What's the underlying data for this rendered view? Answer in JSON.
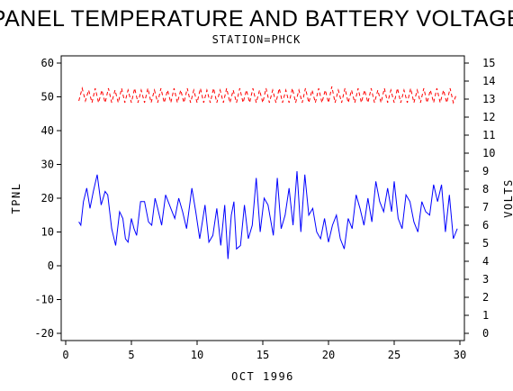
{
  "chart_data": {
    "type": "line",
    "title": "PANEL TEMPERATURE AND BATTERY VOLTAGE",
    "subtitle": "STATION=PHCK",
    "xlabel": "OCT 1996",
    "ylabel_left": "TPNL",
    "ylabel_right": "VOLTS",
    "xlim": [
      0,
      30
    ],
    "ylim_left": [
      -20,
      60
    ],
    "ylim_right": [
      0,
      15
    ],
    "x_ticks": [
      0,
      5,
      10,
      15,
      20,
      25,
      30
    ],
    "y_ticks_left": [
      -20,
      -10,
      0,
      10,
      20,
      30,
      40,
      50,
      60
    ],
    "y_ticks_right": [
      0,
      1,
      2,
      3,
      4,
      5,
      6,
      7,
      8,
      9,
      10,
      11,
      12,
      13,
      14,
      15
    ],
    "grid": false,
    "series": [
      {
        "axis": "left",
        "color": "#0000ff",
        "style": "solid",
        "points": [
          [
            1.0,
            13
          ],
          [
            1.15,
            12
          ],
          [
            1.35,
            19
          ],
          [
            1.6,
            23
          ],
          [
            1.85,
            17
          ],
          [
            2.1,
            22
          ],
          [
            2.4,
            27
          ],
          [
            2.7,
            18
          ],
          [
            3.0,
            22
          ],
          [
            3.2,
            21
          ],
          [
            3.5,
            11
          ],
          [
            3.8,
            6
          ],
          [
            4.1,
            16
          ],
          [
            4.35,
            14
          ],
          [
            4.55,
            8
          ],
          [
            4.75,
            7
          ],
          [
            5.0,
            14
          ],
          [
            5.2,
            11
          ],
          [
            5.4,
            9
          ],
          [
            5.7,
            19
          ],
          [
            6.0,
            19
          ],
          [
            6.3,
            13
          ],
          [
            6.55,
            12
          ],
          [
            6.8,
            20
          ],
          [
            7.0,
            17
          ],
          [
            7.3,
            12
          ],
          [
            7.6,
            21
          ],
          [
            8.0,
            17
          ],
          [
            8.3,
            14
          ],
          [
            8.6,
            20
          ],
          [
            8.9,
            16
          ],
          [
            9.2,
            11
          ],
          [
            9.6,
            23
          ],
          [
            9.9,
            16
          ],
          [
            10.2,
            8
          ],
          [
            10.6,
            18
          ],
          [
            10.9,
            7
          ],
          [
            11.2,
            9
          ],
          [
            11.5,
            17
          ],
          [
            11.8,
            6
          ],
          [
            12.1,
            18
          ],
          [
            12.35,
            2
          ],
          [
            12.6,
            15
          ],
          [
            12.8,
            19
          ],
          [
            13.0,
            5
          ],
          [
            13.3,
            6
          ],
          [
            13.6,
            18
          ],
          [
            13.9,
            8
          ],
          [
            14.2,
            12
          ],
          [
            14.5,
            26
          ],
          [
            14.8,
            10
          ],
          [
            15.1,
            20
          ],
          [
            15.4,
            18
          ],
          [
            15.8,
            9
          ],
          [
            16.1,
            26
          ],
          [
            16.4,
            11
          ],
          [
            16.7,
            15
          ],
          [
            17.0,
            23
          ],
          [
            17.3,
            12
          ],
          [
            17.6,
            28
          ],
          [
            17.9,
            10
          ],
          [
            18.2,
            27
          ],
          [
            18.5,
            15
          ],
          [
            18.8,
            17
          ],
          [
            19.1,
            10
          ],
          [
            19.4,
            8
          ],
          [
            19.7,
            14
          ],
          [
            20.0,
            7
          ],
          [
            20.3,
            12
          ],
          [
            20.6,
            15
          ],
          [
            20.9,
            8
          ],
          [
            21.2,
            5
          ],
          [
            21.5,
            14
          ],
          [
            21.8,
            11
          ],
          [
            22.1,
            21
          ],
          [
            22.4,
            17
          ],
          [
            22.7,
            12
          ],
          [
            23.0,
            20
          ],
          [
            23.3,
            13
          ],
          [
            23.6,
            25
          ],
          [
            23.9,
            19
          ],
          [
            24.2,
            16
          ],
          [
            24.5,
            23
          ],
          [
            24.8,
            16
          ],
          [
            25.0,
            25
          ],
          [
            25.3,
            14
          ],
          [
            25.6,
            11
          ],
          [
            25.9,
            21
          ],
          [
            26.2,
            19
          ],
          [
            26.5,
            13
          ],
          [
            26.8,
            10
          ],
          [
            27.1,
            19
          ],
          [
            27.4,
            16
          ],
          [
            27.7,
            15
          ],
          [
            28.0,
            24
          ],
          [
            28.3,
            19
          ],
          [
            28.6,
            24
          ],
          [
            28.9,
            10
          ],
          [
            29.2,
            21
          ],
          [
            29.5,
            8
          ],
          [
            29.8,
            11
          ]
        ]
      },
      {
        "axis": "right",
        "color": "#ff0000",
        "style": "dashed",
        "points": [
          [
            1.0,
            12.9
          ],
          [
            1.25,
            13.6
          ],
          [
            1.5,
            12.9
          ],
          [
            1.75,
            13.5
          ],
          [
            2.0,
            12.8
          ],
          [
            2.25,
            13.6
          ],
          [
            2.5,
            12.8
          ],
          [
            2.75,
            13.5
          ],
          [
            3.0,
            12.8
          ],
          [
            3.25,
            13.6
          ],
          [
            3.5,
            12.8
          ],
          [
            3.75,
            13.5
          ],
          [
            4.0,
            12.8
          ],
          [
            4.25,
            13.6
          ],
          [
            4.5,
            12.8
          ],
          [
            4.75,
            13.5
          ],
          [
            5.0,
            12.8
          ],
          [
            5.25,
            13.6
          ],
          [
            5.5,
            12.8
          ],
          [
            5.75,
            13.5
          ],
          [
            6.0,
            12.8
          ],
          [
            6.25,
            13.6
          ],
          [
            6.5,
            12.8
          ],
          [
            6.75,
            13.5
          ],
          [
            7.0,
            12.8
          ],
          [
            7.25,
            13.6
          ],
          [
            7.5,
            12.8
          ],
          [
            7.75,
            13.5
          ],
          [
            8.0,
            12.8
          ],
          [
            8.25,
            13.6
          ],
          [
            8.5,
            12.8
          ],
          [
            8.75,
            13.5
          ],
          [
            9.0,
            12.8
          ],
          [
            9.25,
            13.6
          ],
          [
            9.5,
            12.8
          ],
          [
            9.75,
            13.5
          ],
          [
            10.0,
            12.8
          ],
          [
            10.25,
            13.6
          ],
          [
            10.5,
            12.8
          ],
          [
            10.75,
            13.5
          ],
          [
            11.0,
            12.8
          ],
          [
            11.25,
            13.6
          ],
          [
            11.5,
            12.8
          ],
          [
            11.75,
            13.5
          ],
          [
            12.0,
            12.8
          ],
          [
            12.25,
            13.6
          ],
          [
            12.5,
            12.8
          ],
          [
            12.75,
            13.5
          ],
          [
            13.0,
            12.8
          ],
          [
            13.25,
            13.6
          ],
          [
            13.5,
            12.8
          ],
          [
            13.75,
            13.5
          ],
          [
            14.0,
            12.8
          ],
          [
            14.25,
            13.6
          ],
          [
            14.5,
            12.8
          ],
          [
            14.75,
            13.5
          ],
          [
            15.0,
            12.8
          ],
          [
            15.25,
            13.6
          ],
          [
            15.5,
            12.8
          ],
          [
            15.75,
            13.5
          ],
          [
            16.0,
            12.8
          ],
          [
            16.25,
            13.6
          ],
          [
            16.5,
            12.8
          ],
          [
            16.75,
            13.5
          ],
          [
            17.0,
            12.8
          ],
          [
            17.25,
            13.6
          ],
          [
            17.5,
            12.8
          ],
          [
            17.75,
            13.5
          ],
          [
            18.0,
            12.8
          ],
          [
            18.25,
            13.6
          ],
          [
            18.5,
            12.8
          ],
          [
            18.75,
            13.5
          ],
          [
            19.0,
            12.8
          ],
          [
            19.25,
            13.6
          ],
          [
            19.5,
            12.8
          ],
          [
            19.75,
            13.5
          ],
          [
            20.0,
            12.8
          ],
          [
            20.25,
            13.7
          ],
          [
            20.5,
            12.8
          ],
          [
            20.75,
            13.5
          ],
          [
            21.0,
            12.8
          ],
          [
            21.25,
            13.6
          ],
          [
            21.5,
            12.8
          ],
          [
            21.75,
            13.5
          ],
          [
            22.0,
            12.8
          ],
          [
            22.25,
            13.6
          ],
          [
            22.5,
            12.8
          ],
          [
            22.75,
            13.5
          ],
          [
            23.0,
            12.8
          ],
          [
            23.25,
            13.6
          ],
          [
            23.5,
            12.8
          ],
          [
            23.75,
            13.5
          ],
          [
            24.0,
            12.8
          ],
          [
            24.25,
            13.6
          ],
          [
            24.5,
            12.8
          ],
          [
            24.75,
            13.5
          ],
          [
            25.0,
            12.8
          ],
          [
            25.25,
            13.6
          ],
          [
            25.5,
            12.8
          ],
          [
            25.75,
            13.5
          ],
          [
            26.0,
            12.8
          ],
          [
            26.25,
            13.6
          ],
          [
            26.5,
            12.8
          ],
          [
            26.75,
            13.5
          ],
          [
            27.0,
            12.8
          ],
          [
            27.25,
            13.6
          ],
          [
            27.5,
            12.8
          ],
          [
            27.75,
            13.5
          ],
          [
            28.0,
            12.8
          ],
          [
            28.25,
            13.6
          ],
          [
            28.5,
            12.8
          ],
          [
            28.75,
            13.5
          ],
          [
            29.0,
            12.8
          ],
          [
            29.25,
            13.6
          ],
          [
            29.5,
            12.8
          ],
          [
            29.75,
            13.3
          ]
        ]
      }
    ]
  }
}
